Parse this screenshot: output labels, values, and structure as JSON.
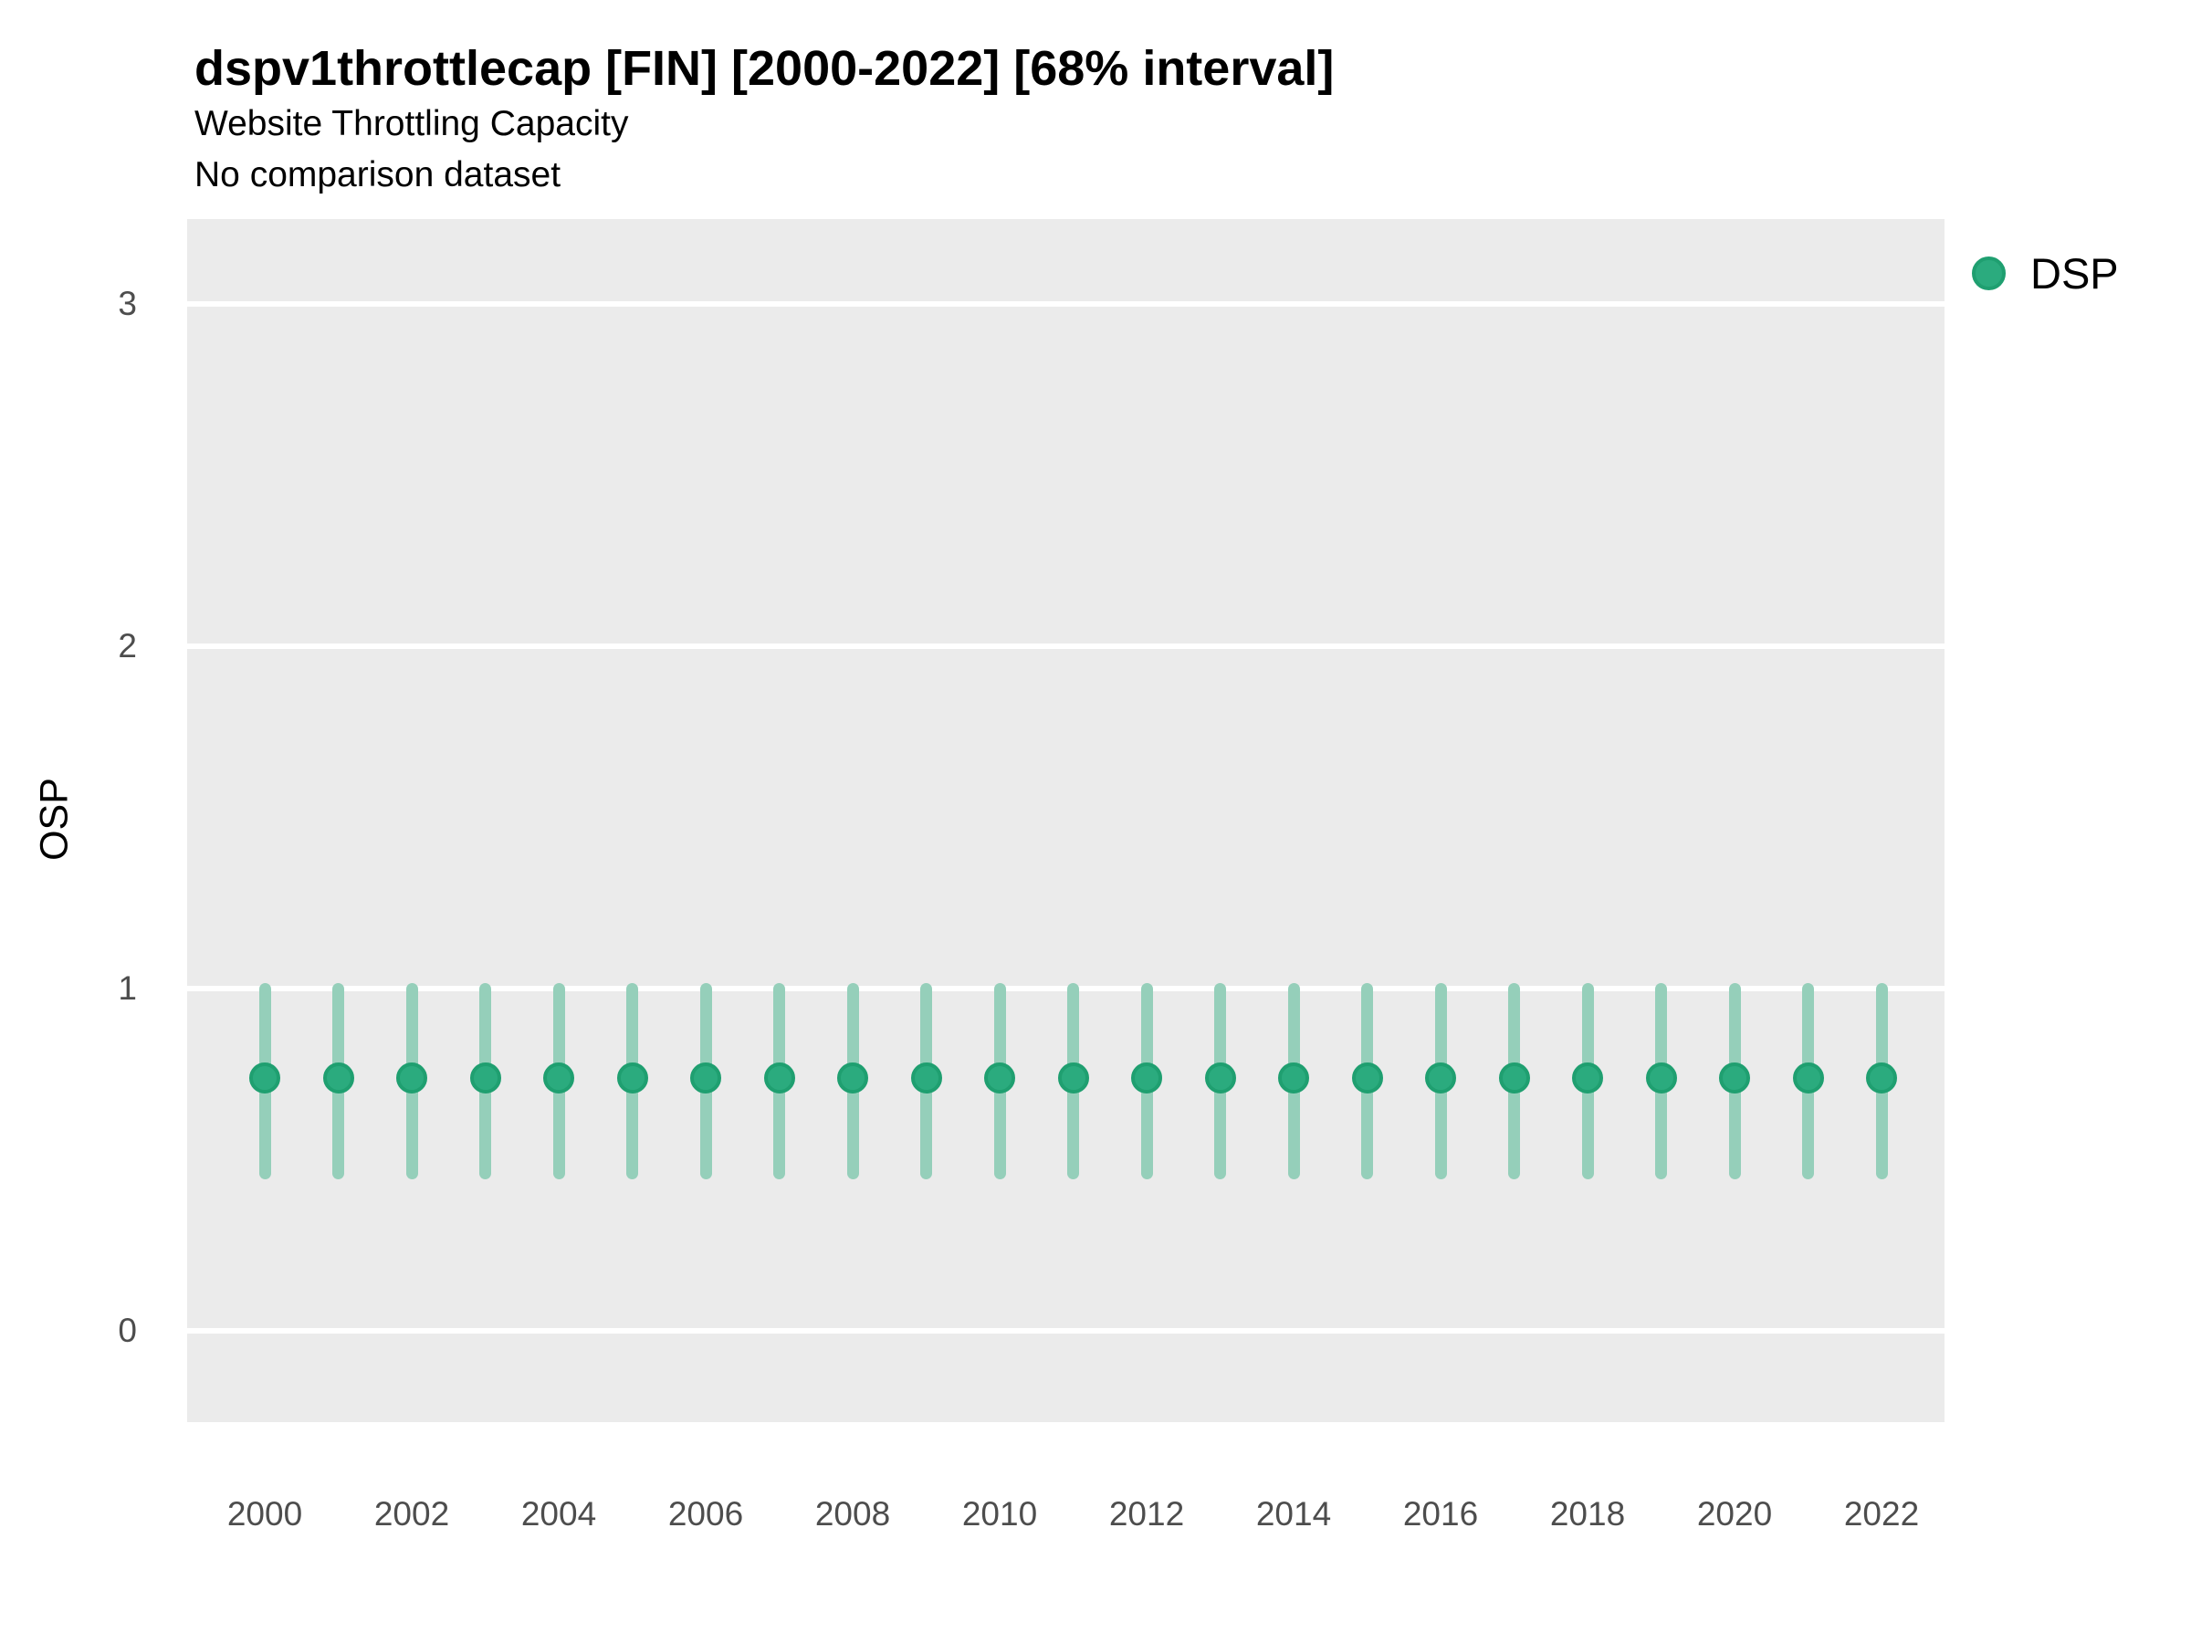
{
  "title": "dspv1throttlecap [FIN] [2000-2022] [68% interval]",
  "subtitle": "Website Throttling Capacity",
  "subtitle2": "No comparison dataset",
  "y_axis": {
    "label": "OSP",
    "ticks": [
      0,
      1,
      2,
      3
    ]
  },
  "x_axis": {
    "ticks": [
      2000,
      2002,
      2004,
      2006,
      2008,
      2010,
      2012,
      2014,
      2016,
      2018,
      2020,
      2022
    ]
  },
  "legend": {
    "position": "right",
    "items": [
      {
        "label": "DSP",
        "color": "#2aa87c"
      }
    ]
  },
  "colors": {
    "point_fill": "#2bab7e",
    "point_ring": "#1f9f70",
    "interval_line": "#95cfba",
    "panel_background": "#ebebeb",
    "gridline": "#ffffff",
    "axis_text": "#4d4d4d",
    "text": "#000000"
  },
  "chart_data": {
    "type": "scatter",
    "subtype": "point-interval",
    "interval_level": "68%",
    "title": "dspv1throttlecap [FIN] [2000-2022] [68% interval]",
    "xlabel": "",
    "ylabel": "OSP",
    "ylim": [
      -0.27,
      3.25
    ],
    "grid": "horizontal-major-only",
    "legend_position": "right",
    "x": [
      2000,
      2001,
      2002,
      2003,
      2004,
      2005,
      2006,
      2007,
      2008,
      2009,
      2010,
      2011,
      2012,
      2013,
      2014,
      2015,
      2016,
      2017,
      2018,
      2019,
      2020,
      2021,
      2022
    ],
    "series": [
      {
        "name": "DSP",
        "values": [
          0.74,
          0.74,
          0.74,
          0.74,
          0.74,
          0.74,
          0.74,
          0.74,
          0.74,
          0.74,
          0.74,
          0.74,
          0.74,
          0.74,
          0.74,
          0.74,
          0.74,
          0.74,
          0.74,
          0.74,
          0.74,
          0.74,
          0.74
        ],
        "lower": [
          0.46,
          0.46,
          0.46,
          0.46,
          0.46,
          0.46,
          0.46,
          0.46,
          0.46,
          0.46,
          0.46,
          0.46,
          0.46,
          0.46,
          0.46,
          0.46,
          0.46,
          0.46,
          0.46,
          0.46,
          0.46,
          0.46,
          0.46
        ],
        "upper": [
          1.0,
          1.0,
          1.0,
          1.0,
          1.0,
          1.0,
          1.0,
          1.0,
          1.0,
          1.0,
          1.0,
          1.0,
          1.0,
          1.0,
          1.0,
          1.0,
          1.0,
          1.0,
          1.0,
          1.0,
          1.0,
          1.0,
          1.0
        ]
      }
    ]
  }
}
